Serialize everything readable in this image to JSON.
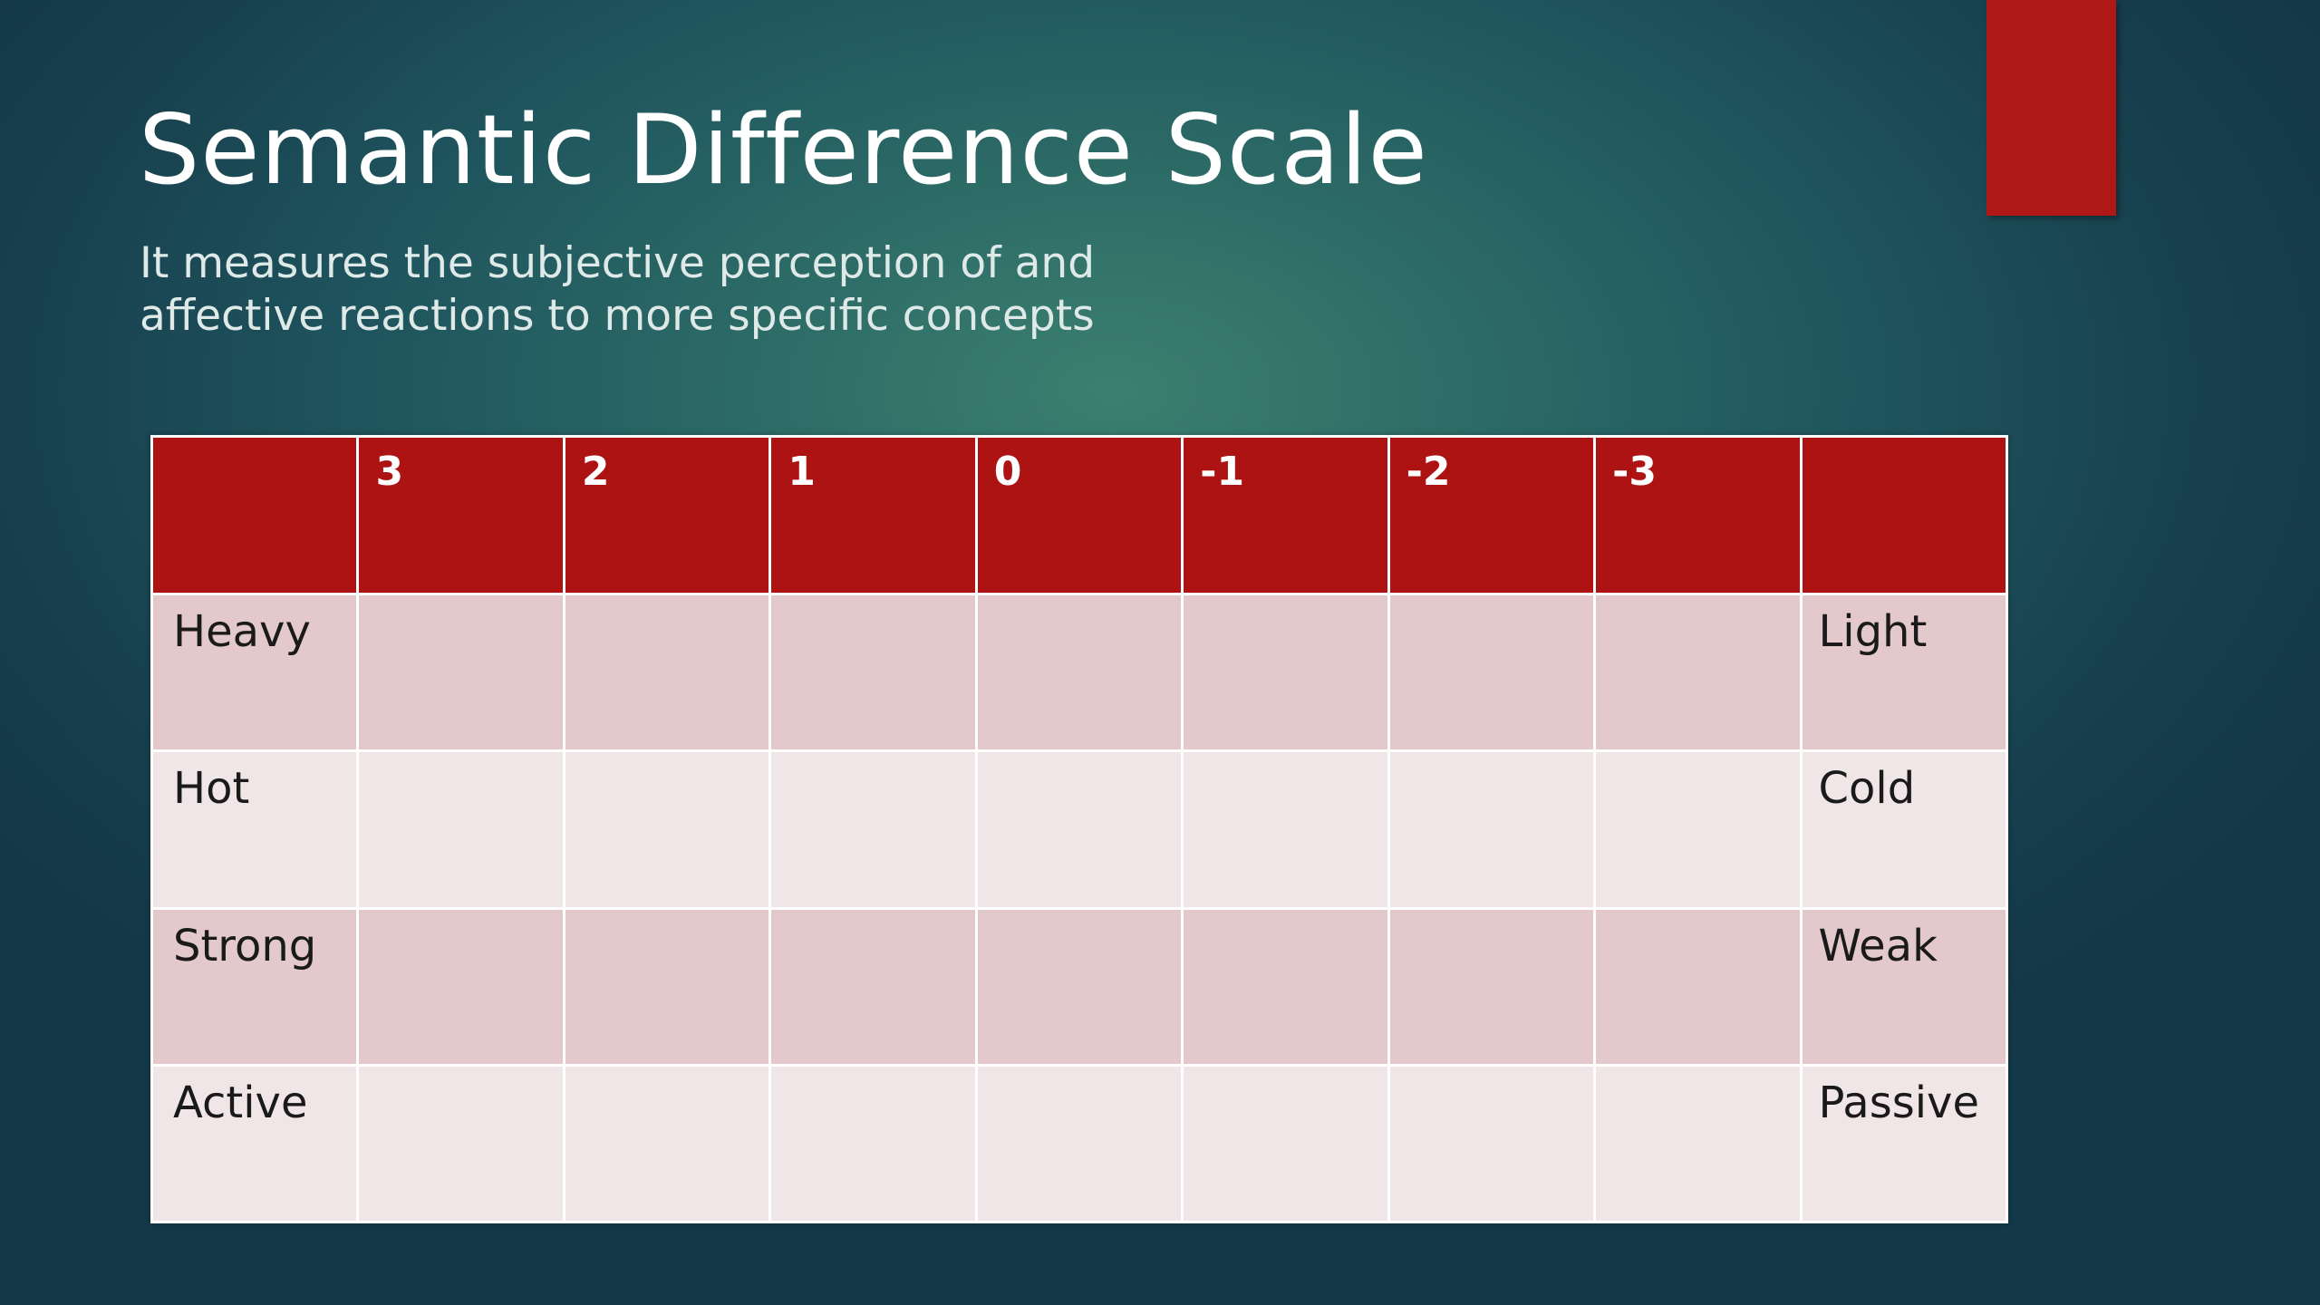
{
  "slide": {
    "title": "Semantic Difference Scale",
    "subtitle_lines": [
      "It measures the subjective perception of and",
      "affective reactions to more specific concepts"
    ],
    "accent_color": "#b01818"
  },
  "table": {
    "header": [
      "",
      "3",
      "2",
      "1",
      "0",
      "-1",
      "-2",
      "-3",
      ""
    ],
    "rows": [
      {
        "left": "Heavy",
        "right": "Light"
      },
      {
        "left": "Hot",
        "right": "Cold"
      },
      {
        "left": "Strong",
        "right": "Weak"
      },
      {
        "left": "Active",
        "right": "Passive"
      }
    ],
    "header_color": "#ae1313",
    "row_colors": [
      "#e3c9cb",
      "#f1e6e7"
    ]
  }
}
